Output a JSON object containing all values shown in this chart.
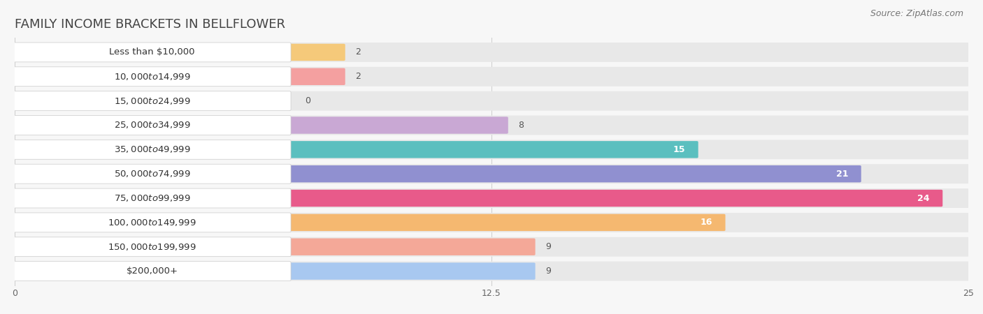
{
  "title": "FAMILY INCOME BRACKETS IN BELLFLOWER",
  "source": "Source: ZipAtlas.com",
  "categories": [
    "Less than $10,000",
    "$10,000 to $14,999",
    "$15,000 to $24,999",
    "$25,000 to $34,999",
    "$35,000 to $49,999",
    "$50,000 to $74,999",
    "$75,000 to $99,999",
    "$100,000 to $149,999",
    "$150,000 to $199,999",
    "$200,000+"
  ],
  "values": [
    2,
    2,
    0,
    8,
    15,
    21,
    24,
    16,
    9,
    9
  ],
  "bar_colors": [
    "#F5C97A",
    "#F4A0A0",
    "#A8C4E8",
    "#C9A8D4",
    "#5BBFBF",
    "#9090D0",
    "#E85A8A",
    "#F5B870",
    "#F4A898",
    "#A8C8F0"
  ],
  "xlim": [
    0,
    25
  ],
  "xticks": [
    0,
    12.5,
    25
  ],
  "background_color": "#f7f7f7",
  "bar_bg_color": "#e8e8e8",
  "title_fontsize": 13,
  "label_fontsize": 9.5,
  "value_fontsize": 9,
  "source_fontsize": 9
}
